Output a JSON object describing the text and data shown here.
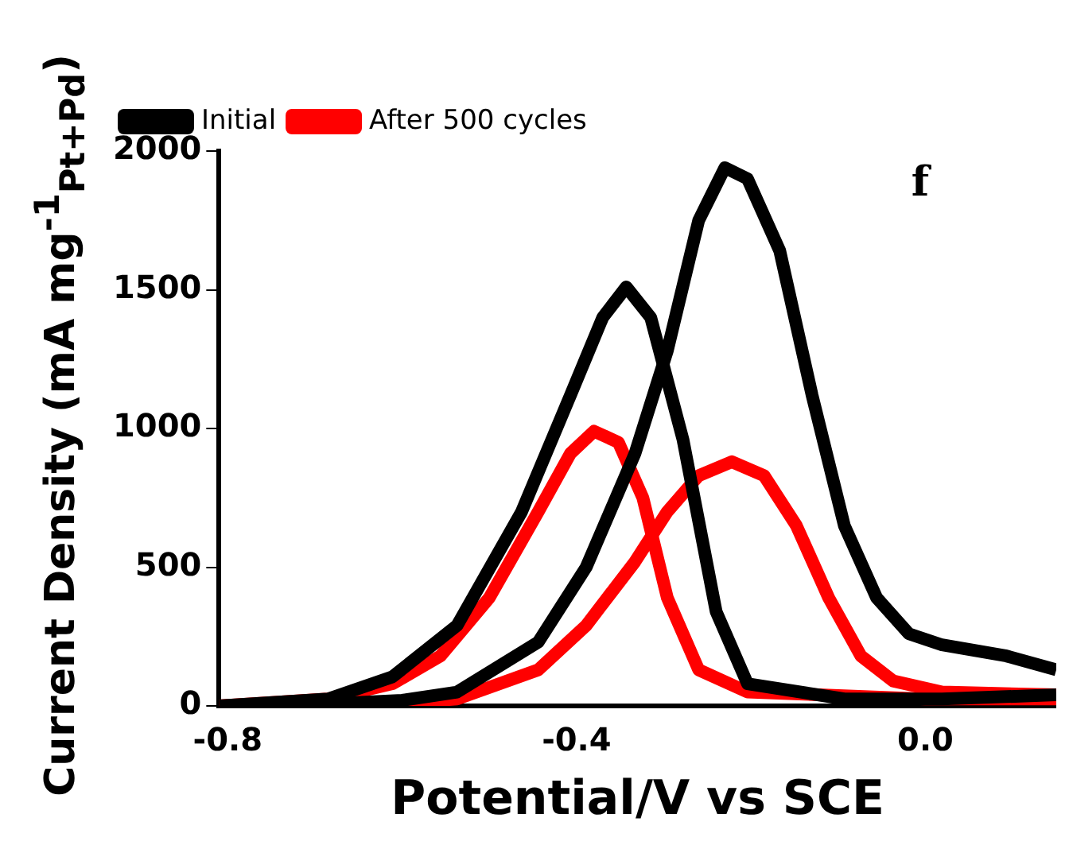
{
  "chart_data": {
    "type": "line",
    "xlabel": "Potential/V vs SCE",
    "ylabel": "Current Density (mA mg$^{-1}$$_{Pt+Pd}$)",
    "annotations": [
      "f"
    ],
    "xlim": [
      -0.81,
      0.15
    ],
    "ylim": [
      0,
      2000
    ],
    "xticks": [
      -0.8,
      -0.4,
      {
        "value": 0,
        "label": "0.0"
      }
    ],
    "yticks": [
      0,
      500,
      1000,
      1500,
      2000
    ],
    "grid": false,
    "legend": "top left",
    "series": [
      {
        "name": "Initial",
        "color": "#000000",
        "x": [
          -0.81,
          -0.7,
          -0.6,
          -0.537,
          -0.444,
          -0.389,
          -0.333,
          -0.296,
          -0.26,
          -0.23,
          -0.204,
          -0.167,
          -0.13,
          -0.093,
          -0.056,
          -0.019,
          0.019,
          0.093,
          0.15
        ],
        "values": [
          0,
          5,
          20,
          50,
          230,
          500,
          910,
          1280,
          1750,
          1940,
          1900,
          1640,
          1120,
          650,
          390,
          260,
          220,
          180,
          130
        ]
      },
      {
        "color": "#000000",
        "x": [
          -0.81,
          -0.685,
          -0.611,
          -0.537,
          -0.463,
          -0.407,
          -0.37,
          -0.343,
          -0.315,
          -0.278,
          -0.24,
          -0.204,
          -0.093,
          0.019,
          0.15
        ],
        "values": [
          0,
          25,
          105,
          290,
          700,
          1120,
          1400,
          1510,
          1400,
          960,
          340,
          80,
          25,
          25,
          40
        ]
      },
      {
        "name": "After 500 cycles",
        "color": "#ff0000",
        "x": [
          -0.81,
          -0.6,
          -0.537,
          -0.444,
          -0.389,
          -0.333,
          -0.296,
          -0.26,
          -0.222,
          -0.185,
          -0.148,
          -0.111,
          -0.074,
          -0.037,
          0.019,
          0.15
        ],
        "values": [
          0,
          10,
          25,
          130,
          290,
          520,
          700,
          830,
          880,
          830,
          650,
          390,
          180,
          90,
          50,
          40
        ]
      },
      {
        "color": "#ff0000",
        "x": [
          -0.81,
          -0.685,
          -0.611,
          -0.556,
          -0.5,
          -0.444,
          -0.407,
          -0.38,
          -0.352,
          -0.324,
          -0.296,
          -0.26,
          -0.204,
          0.0,
          0.15
        ],
        "values": [
          0,
          25,
          80,
          180,
          390,
          700,
          910,
          990,
          950,
          750,
          390,
          130,
          50,
          25,
          25
        ]
      }
    ]
  }
}
